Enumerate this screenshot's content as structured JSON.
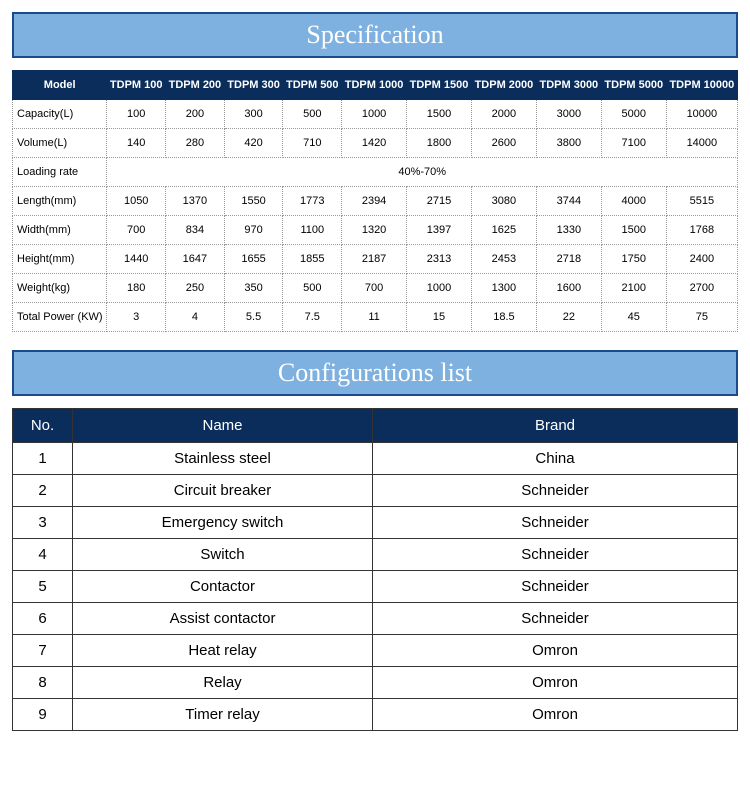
{
  "spec": {
    "header_title": "Specification",
    "columns": [
      "Model",
      "TDPM 100",
      "TDPM 200",
      "TDPM 300",
      "TDPM 500",
      "TDPM 1000",
      "TDPM 1500",
      "TDPM 2000",
      "TDPM 3000",
      "TDPM 5000",
      "TDPM 10000"
    ],
    "rows": [
      {
        "label": "Capacity(L)",
        "values": [
          "100",
          "200",
          "300",
          "500",
          "1000",
          "1500",
          "2000",
          "3000",
          "5000",
          "10000"
        ]
      },
      {
        "label": "Volume(L)",
        "values": [
          "140",
          "280",
          "420",
          "710",
          "1420",
          "1800",
          "2600",
          "3800",
          "7100",
          "14000"
        ]
      },
      {
        "label": "Loading rate",
        "merged": "40%-70%"
      },
      {
        "label": "Length(mm)",
        "values": [
          "1050",
          "1370",
          "1550",
          "1773",
          "2394",
          "2715",
          "3080",
          "3744",
          "4000",
          "5515"
        ]
      },
      {
        "label": "Width(mm)",
        "values": [
          "700",
          "834",
          "970",
          "1100",
          "1320",
          "1397",
          "1625",
          "1330",
          "1500",
          "1768"
        ]
      },
      {
        "label": "Height(mm)",
        "values": [
          "1440",
          "1647",
          "1655",
          "1855",
          "2187",
          "2313",
          "2453",
          "2718",
          "1750",
          "2400"
        ]
      },
      {
        "label": "Weight(kg)",
        "values": [
          "180",
          "250",
          "350",
          "500",
          "700",
          "1000",
          "1300",
          "1600",
          "2100",
          "2700"
        ]
      },
      {
        "label": "Total Power (KW)",
        "values": [
          "3",
          "4",
          "5.5",
          "7.5",
          "11",
          "15",
          "18.5",
          "22",
          "45",
          "75"
        ]
      }
    ],
    "style": {
      "header_bg": "#7eb1e0",
      "header_border": "#1a4b8c",
      "header_text_color": "#ffffff",
      "header_font": "Times New Roman",
      "header_fontsize": 26,
      "table_header_bg": "#0a2d5c",
      "table_header_color": "#ffffff",
      "cell_border_style": "dotted",
      "cell_border_color": "#999999",
      "cell_fontsize": 11
    }
  },
  "config": {
    "header_title": "Configurations list",
    "columns": [
      "No.",
      "Name",
      "Brand"
    ],
    "rows": [
      {
        "no": "1",
        "name": "Stainless steel",
        "brand": "China"
      },
      {
        "no": "2",
        "name": "Circuit breaker",
        "brand": "Schneider"
      },
      {
        "no": "3",
        "name": "Emergency switch",
        "brand": "Schneider"
      },
      {
        "no": "4",
        "name": "Switch",
        "brand": "Schneider"
      },
      {
        "no": "5",
        "name": "Contactor",
        "brand": "Schneider"
      },
      {
        "no": "6",
        "name": "Assist contactor",
        "brand": "Schneider"
      },
      {
        "no": "7",
        "name": "Heat relay",
        "brand": "Omron"
      },
      {
        "no": "8",
        "name": "Relay",
        "brand": "Omron"
      },
      {
        "no": "9",
        "name": "Timer relay",
        "brand": "Omron"
      }
    ],
    "style": {
      "header_bg": "#7eb1e0",
      "header_border": "#1a4b8c",
      "header_text_color": "#ffffff",
      "header_font": "Times New Roman",
      "header_fontsize": 26,
      "table_header_bg": "#0a2d5c",
      "table_header_color": "#ffffff",
      "cell_border_color": "#333333",
      "cell_fontsize": 15
    }
  }
}
